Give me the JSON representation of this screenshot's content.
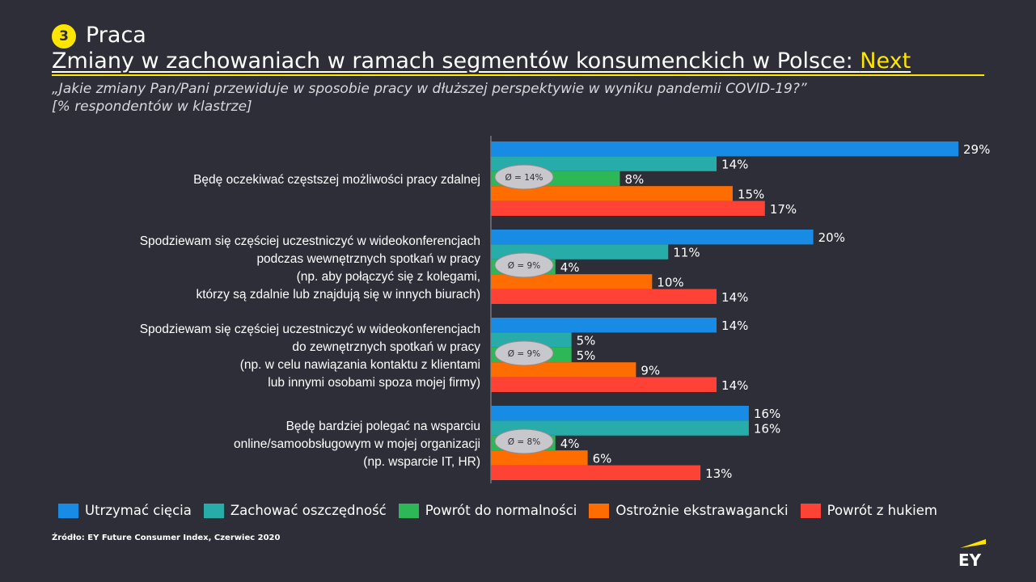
{
  "header": {
    "section_number": "3",
    "section_label": "Praca",
    "title_main": "Zmiany w zachowaniach w ramach segmentów konsumenckich w Polsce: ",
    "title_accent": "Next",
    "question_line1": "„Jakie zmiany Pan/Pani przewiduje w sposobie pracy w dłuższej perspektywie w wyniku pandemii COVID-19?”",
    "question_line2": "[% respondentów w klastrze]"
  },
  "chart_data": {
    "type": "bar",
    "orientation": "horizontal",
    "unit": "%",
    "xlim": [
      0,
      29
    ],
    "series": [
      {
        "name": "Utrzymać cięcia",
        "color": "#188ce5",
        "values": [
          29,
          20,
          14,
          16
        ]
      },
      {
        "name": "Zachować oszczędność",
        "color": "#27acaa",
        "values": [
          14,
          11,
          5,
          16
        ]
      },
      {
        "name": "Powrót do normalności",
        "color": "#2db757",
        "values": [
          8,
          4,
          5,
          4
        ]
      },
      {
        "name": "Ostrożnie ekstrawagancki",
        "color": "#ff6d00",
        "values": [
          15,
          10,
          9,
          6
        ]
      },
      {
        "name": "Powrót z hukiem",
        "color": "#ff4136",
        "values": [
          17,
          14,
          14,
          13
        ]
      }
    ],
    "groups": [
      {
        "lines": [
          "Będę oczekiwać częstszej możliwości pracy zdalnej"
        ],
        "avg": "Ø = 14%"
      },
      {
        "lines": [
          "Spodziewam się częściej uczestniczyć w wideokonferencjach",
          "podczas wewnętrznych spotkań w pracy",
          "(np. aby połączyć się z kolegami,",
          "którzy są zdalnie lub znajdują się w innych biurach)"
        ],
        "avg": "Ø = 9%"
      },
      {
        "lines": [
          "Spodziewam się częściej uczestniczyć w wideokonferencjach",
          "do zewnętrznych spotkań w pracy",
          "(np. w celu nawiązania kontaktu z klientami",
          "lub innymi osobami spoza mojej firmy)"
        ],
        "avg": "Ø = 9%"
      },
      {
        "lines": [
          "Będę bardziej polegać na wsparciu",
          "online/samoobsługowym w mojej organizacji",
          "(np. wsparcie IT, HR)"
        ],
        "avg": "Ø = 8%"
      }
    ],
    "legend_position": "bottom",
    "grid": false
  },
  "footer": {
    "source": "Źródło: EY Future Consumer Index, Czerwiec 2020",
    "logo_text": "EY"
  }
}
